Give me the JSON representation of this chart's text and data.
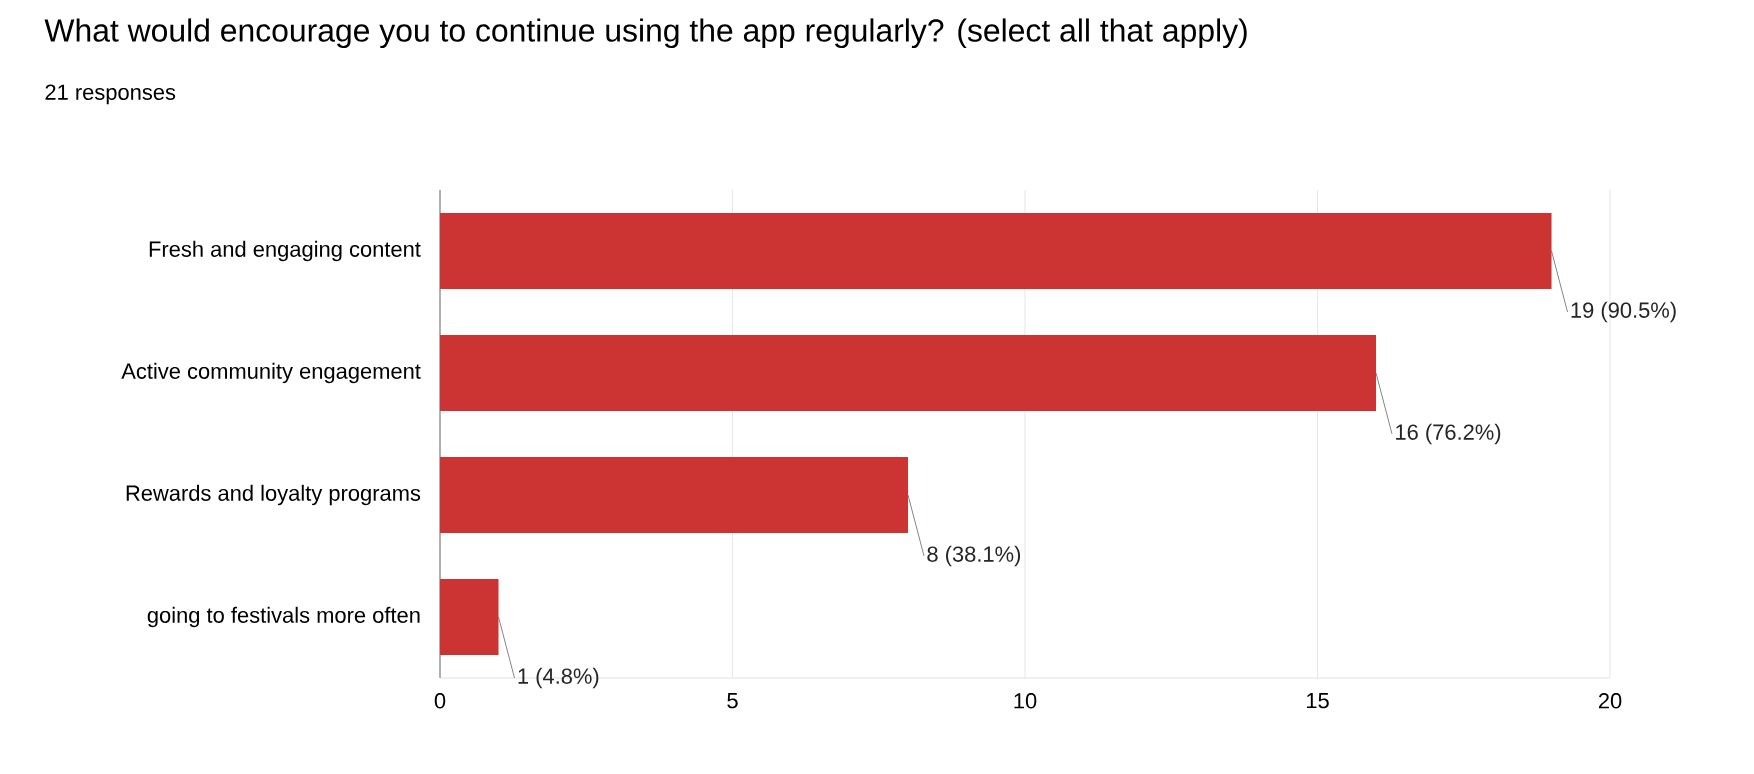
{
  "chart_data": {
    "type": "bar",
    "orientation": "horizontal",
    "title": "What would encourage you to continue using the app regularly? (select all that apply)",
    "subtitle": "21 responses",
    "categories": [
      "Fresh and engaging content",
      "Active community engagement",
      "Rewards and loyalty programs",
      "going to festivals more often"
    ],
    "values": [
      19,
      16,
      8,
      1
    ],
    "value_labels": [
      "19 (90.5%)",
      "16 (76.2%)",
      "8 (38.1%)",
      "1 (4.8%)"
    ],
    "color": "#cc3333",
    "xlim": [
      0,
      20
    ],
    "xticks": [
      0,
      5,
      10,
      15,
      20
    ],
    "grid": "x"
  }
}
